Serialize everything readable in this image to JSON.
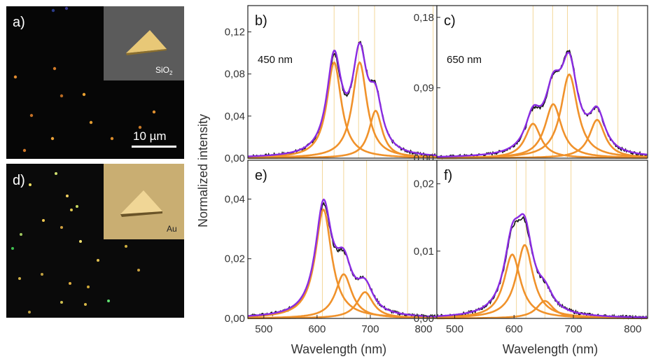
{
  "colors": {
    "measured": "#111111",
    "fit_total": "#8a2be2",
    "lorentz_component": "#f0922b",
    "guide_line": "#f3d79a"
  },
  "images": {
    "a": {
      "label": "a)",
      "inset_text": "SiO",
      "inset_sub": "2",
      "scalebar": "10 µm"
    },
    "d": {
      "label": "d)",
      "inset_text": "Au"
    }
  },
  "axis_titles": {
    "y": "Normalized intensity",
    "x_left": "Wavelength (nm)",
    "x_right": "Wavelength (nm)"
  },
  "chart_data": [
    {
      "panel": "b)",
      "type": "line",
      "annotation": "450 nm",
      "xlim": [
        470,
        825
      ],
      "ylim": [
        0,
        0.145
      ],
      "yticks": [
        "0,00",
        "0,04",
        "0,08",
        "0,12"
      ],
      "ytick_values": [
        0,
        0.04,
        0.08,
        0.12
      ],
      "guides": [
        632,
        678,
        708,
        818
      ],
      "components": [
        {
          "center": 632,
          "amp": 0.091,
          "width": 33
        },
        {
          "center": 680,
          "amp": 0.091,
          "width": 33
        },
        {
          "center": 710,
          "amp": 0.045,
          "width": 30
        }
      ]
    },
    {
      "panel": "c)",
      "type": "line",
      "annotation": "650 nm",
      "xlim": [
        470,
        825
      ],
      "ylim": [
        0,
        0.195
      ],
      "yticks": [
        "0,00",
        "0,09",
        "0,18"
      ],
      "ytick_values": [
        0,
        0.09,
        0.18
      ],
      "guides": [
        632,
        665,
        690,
        740,
        775
      ],
      "components": [
        {
          "center": 632,
          "amp": 0.044,
          "width": 32
        },
        {
          "center": 666,
          "amp": 0.069,
          "width": 34
        },
        {
          "center": 693,
          "amp": 0.107,
          "width": 34
        },
        {
          "center": 740,
          "amp": 0.049,
          "width": 32
        }
      ]
    },
    {
      "panel": "e)",
      "type": "line",
      "xlim": [
        470,
        825
      ],
      "ylim": [
        0,
        0.053
      ],
      "xticks": [
        "500",
        "600",
        "700",
        "800"
      ],
      "xtick_values": [
        500,
        600,
        700,
        800
      ],
      "yticks": [
        "0,00",
        "0,02",
        "0,04"
      ],
      "ytick_values": [
        0,
        0.02,
        0.04
      ],
      "guides": [
        610,
        650,
        693,
        770
      ],
      "components": [
        {
          "center": 612,
          "amp": 0.0365,
          "width": 37
        },
        {
          "center": 650,
          "amp": 0.0148,
          "width": 37
        },
        {
          "center": 690,
          "amp": 0.0088,
          "width": 37
        }
      ]
    },
    {
      "panel": "f)",
      "type": "line",
      "xlim": [
        470,
        825
      ],
      "ylim": [
        0,
        0.0235
      ],
      "xticks": [
        "500",
        "600",
        "700",
        "800"
      ],
      "xtick_values": [
        500,
        600,
        700,
        800
      ],
      "yticks": [
        "0,00",
        "0,01",
        "0,02"
      ],
      "ytick_values": [
        0,
        0.01,
        0.02
      ],
      "guides": [
        604,
        620,
        652,
        696
      ],
      "components": [
        {
          "center": 597,
          "amp": 0.0095,
          "width": 34
        },
        {
          "center": 618,
          "amp": 0.0109,
          "width": 34
        },
        {
          "center": 652,
          "amp": 0.0026,
          "width": 34
        }
      ]
    }
  ]
}
